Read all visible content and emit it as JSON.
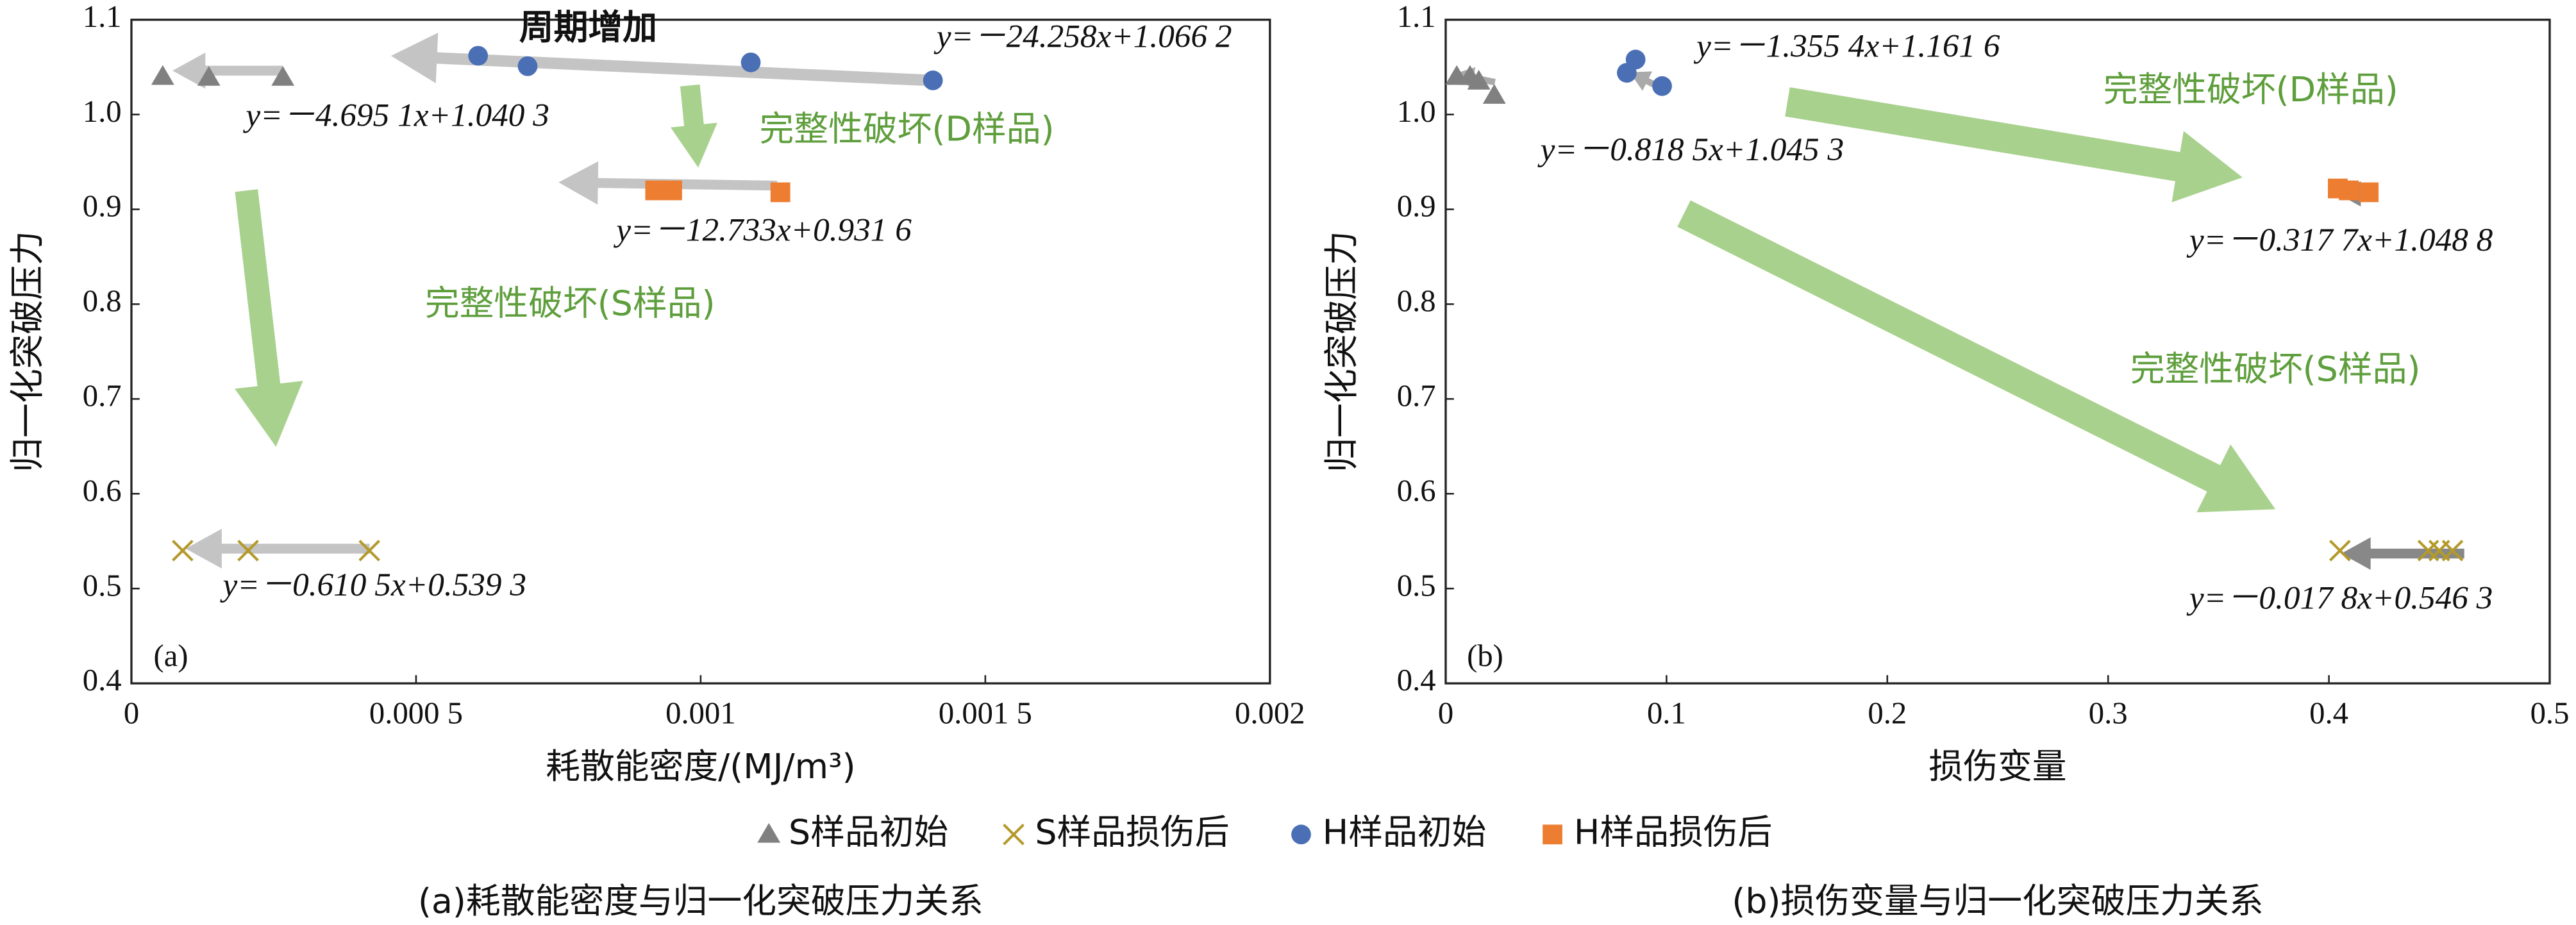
{
  "chart_data": [
    {
      "type": "scatter",
      "xlabel": "耗散能密度/(MJ/m³)",
      "ylabel": "归一化突破压力",
      "panel": "(a)",
      "caption": "(a)耗散能密度与归一化突破压力关系",
      "xlim": [
        0,
        0.002
      ],
      "ylim": [
        0.4,
        1.1
      ],
      "xticks": [
        0,
        {
          "value": 0.0005,
          "label": "0.000 5"
        },
        0.001,
        {
          "value": 0.0015,
          "label": "0.001 5"
        },
        0.002
      ],
      "yticks": [
        0.4,
        0.5,
        0.6,
        0.7,
        0.8,
        0.9,
        {
          "value": 1,
          "label": "1.0"
        },
        1.1
      ],
      "series": [
        {
          "name": "S样品初始",
          "marker": "triangle",
          "color": "#808080",
          "x": [
            5.5e-05,
            0.000136,
            0.000266
          ],
          "values": [
            1.04,
            1.039,
            1.039
          ]
        },
        {
          "name": "S样品损伤后",
          "marker": "cross",
          "color": "#b39a2a",
          "x": [
            9e-05,
            0.000205,
            0.000418
          ],
          "values": [
            0.54,
            0.54,
            0.54
          ]
        },
        {
          "name": "H样品初始",
          "marker": "circle",
          "color": "#4a6fb5",
          "x": [
            0.000609,
            0.000696,
            0.001088,
            0.001408
          ],
          "values": [
            1.062,
            1.051,
            1.055,
            1.036
          ]
        },
        {
          "name": "H样品损伤后",
          "marker": "square",
          "color": "#ed7d31",
          "x": [
            0.00092,
            0.00095,
            0.00114
          ],
          "values": [
            0.92,
            0.92,
            0.918
          ]
        }
      ],
      "annotations": [
        "周期增加",
        "y=－24.258x+1.066 2",
        "y=－4.695 1x+1.040 3",
        "完整性破坏(D样品)",
        "y=－12.733x+0.931 6",
        "完整性破坏(S样品)",
        "y=－0.610 5x+0.539 3"
      ]
    },
    {
      "type": "scatter",
      "xlabel": "损伤变量",
      "ylabel": "归一化突破压力",
      "panel": "(b)",
      "caption": "(b)损伤变量与归一化突破压力关系",
      "xlim": [
        0,
        0.5
      ],
      "ylim": [
        0.4,
        1.1
      ],
      "xticks": [
        0,
        0.1,
        0.2,
        0.3,
        0.4,
        0.5
      ],
      "yticks": [
        0.4,
        0.5,
        0.6,
        0.7,
        0.8,
        0.9,
        {
          "value": 1,
          "label": "1.0"
        },
        1.1
      ],
      "series": [
        {
          "marker": "triangle",
          "color": "#808080",
          "x": [
            0.005,
            0.011,
            0.015,
            0.022
          ],
          "values": [
            1.04,
            1.04,
            1.035,
            1.02
          ]
        },
        {
          "marker": "cross",
          "color": "#b39a2a",
          "x": [
            0.405,
            0.445,
            0.45,
            0.456
          ],
          "values": [
            0.54,
            0.54,
            0.54,
            0.54
          ]
        },
        {
          "marker": "circle",
          "color": "#4a6fb5",
          "x": [
            0.082,
            0.086,
            0.098
          ],
          "values": [
            1.044,
            1.058,
            1.03
          ]
        },
        {
          "marker": "square",
          "color": "#ed7d31",
          "x": [
            0.404,
            0.409,
            0.418
          ],
          "values": [
            0.922,
            0.92,
            0.918
          ]
        }
      ],
      "annotations": [
        "y=－1.355 4x+1.161 6",
        "完整性破坏(D样品)",
        "y=－0.818 5x+1.045 3",
        "y=－0.317 7x+1.048 8",
        "完整性破坏(S样品)",
        "y=－0.017 8x+0.546 3"
      ]
    }
  ]
}
